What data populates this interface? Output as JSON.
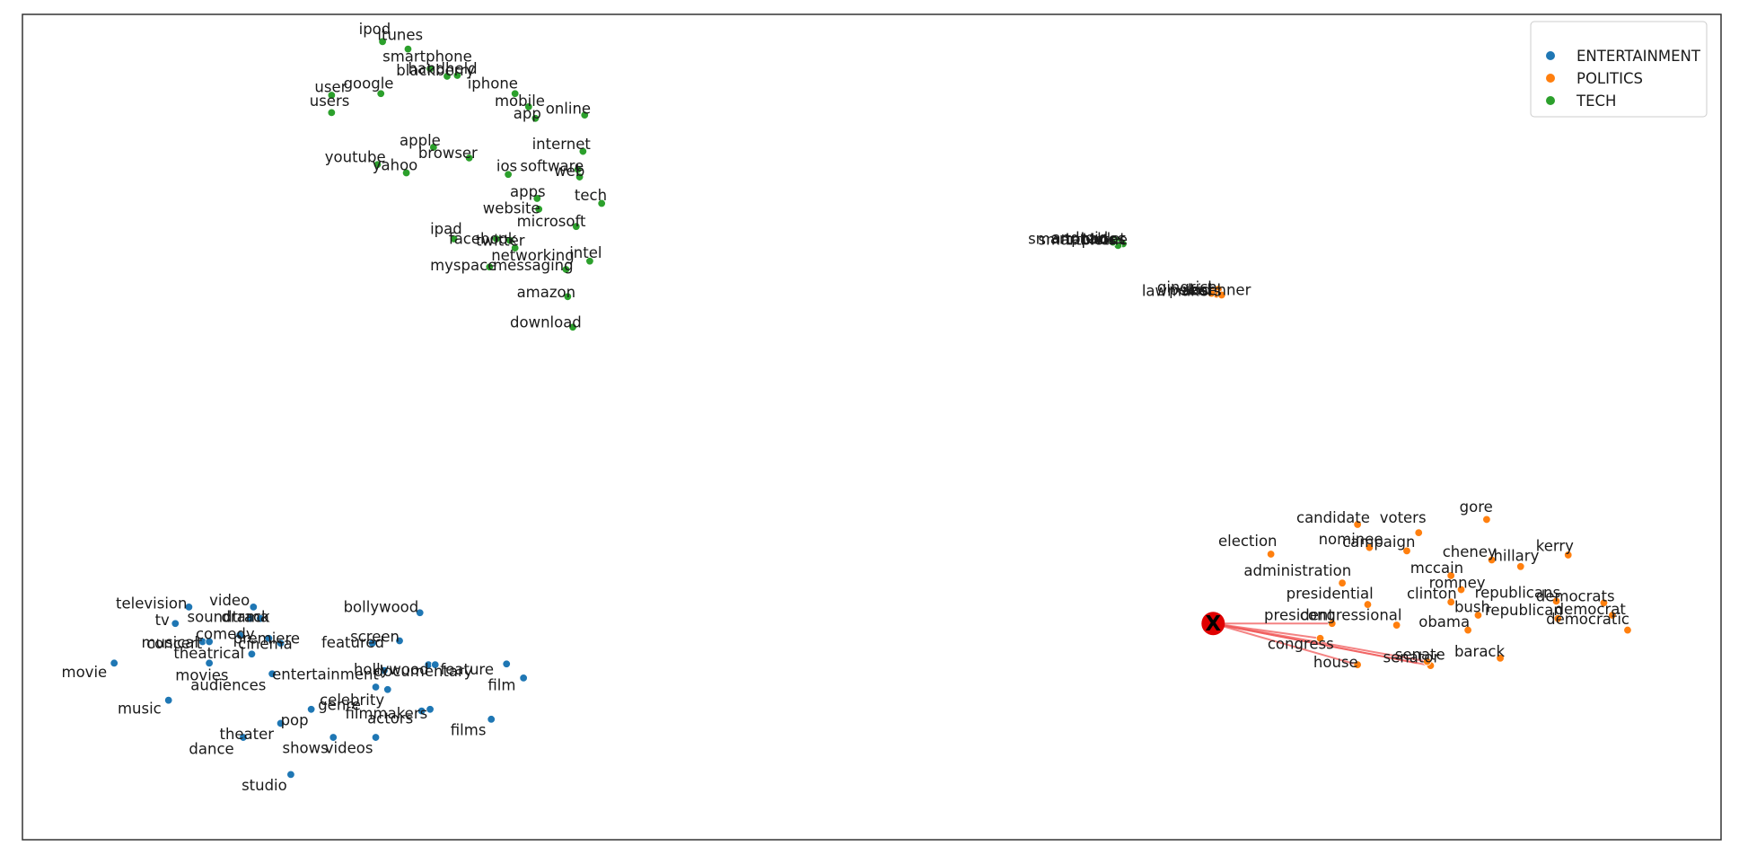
{
  "chart_data": {
    "type": "scatter",
    "title": "",
    "xlabel": "",
    "ylabel": "",
    "axes_visible": false,
    "grid": false,
    "legend_position": "top-right",
    "xlim": [
      0,
      1000
    ],
    "ylim": [
      0,
      1000
    ],
    "colors": {
      "ENTERTAINMENT": "#1f77b4",
      "POLITICS": "#ff7f0e",
      "TECH": "#2ca02c",
      "query_edge": "#f05a5a",
      "query_marker": "#e00000"
    },
    "legend": [
      "ENTERTAINMENT",
      "POLITICS",
      "TECH"
    ],
    "query_marker": {
      "label": "X",
      "x": 701,
      "y": 262
    },
    "query_edges": [
      {
        "x": 771,
        "y": 262
      },
      {
        "x": 764,
        "y": 244
      },
      {
        "x": 786,
        "y": 212
      },
      {
        "x": 829,
        "y": 211
      },
      {
        "x": 827,
        "y": 216
      },
      {
        "x": 821,
        "y": 214
      }
    ],
    "series": [
      {
        "name": "ENTERTAINMENT",
        "points": [
          {
            "label": "television",
            "x": 98,
            "y": 282
          },
          {
            "label": "video",
            "x": 136,
            "y": 282
          },
          {
            "label": "soundtrack",
            "x": 134,
            "y": 268
          },
          {
            "label": "drama",
            "x": 140,
            "y": 268
          },
          {
            "label": "tv",
            "x": 90,
            "y": 262
          },
          {
            "label": "comedy",
            "x": 128,
            "y": 248
          },
          {
            "label": "premiere",
            "x": 145,
            "y": 244
          },
          {
            "label": "cinema",
            "x": 152,
            "y": 238
          },
          {
            "label": "musical",
            "x": 106,
            "y": 240
          },
          {
            "label": "concert",
            "x": 110,
            "y": 240
          },
          {
            "label": "theatrical",
            "x": 135,
            "y": 225
          },
          {
            "label": "movie",
            "x": 54,
            "y": 214
          },
          {
            "label": "movies",
            "x": 110,
            "y": 214
          },
          {
            "label": "audiences",
            "x": 147,
            "y": 201
          },
          {
            "label": "bollywood",
            "x": 234,
            "y": 275
          },
          {
            "label": "screen",
            "x": 222,
            "y": 241
          },
          {
            "label": "featured",
            "x": 206,
            "y": 238
          },
          {
            "label": "hollywood",
            "x": 239,
            "y": 212
          },
          {
            "label": "documentary",
            "x": 243,
            "y": 212
          },
          {
            "label": "feature",
            "x": 285,
            "y": 213
          },
          {
            "label": "entertainment",
            "x": 213,
            "y": 205
          },
          {
            "label": "film",
            "x": 295,
            "y": 196
          },
          {
            "label": "celebrity",
            "x": 208,
            "y": 185
          },
          {
            "label": "genre",
            "x": 215,
            "y": 182
          },
          {
            "label": "filmmakers",
            "x": 240,
            "y": 158
          },
          {
            "label": "actors",
            "x": 235,
            "y": 156
          },
          {
            "label": "films",
            "x": 276,
            "y": 146
          },
          {
            "label": "music",
            "x": 86,
            "y": 169
          },
          {
            "label": "pop",
            "x": 170,
            "y": 158
          },
          {
            "label": "theater",
            "x": 152,
            "y": 141
          },
          {
            "label": "dance",
            "x": 130,
            "y": 124
          },
          {
            "label": "shows",
            "x": 183,
            "y": 124
          },
          {
            "label": "videos",
            "x": 208,
            "y": 124
          },
          {
            "label": "studio",
            "x": 158,
            "y": 79
          }
        ]
      },
      {
        "name": "POLITICS",
        "points": [
          {
            "label": "candidate",
            "x": 786,
            "y": 382
          },
          {
            "label": "voters",
            "x": 822,
            "y": 372
          },
          {
            "label": "gore",
            "x": 862,
            "y": 388
          },
          {
            "label": "election",
            "x": 735,
            "y": 346
          },
          {
            "label": "nominee",
            "x": 793,
            "y": 354
          },
          {
            "label": "campaign",
            "x": 815,
            "y": 350
          },
          {
            "label": "cheney",
            "x": 865,
            "y": 339
          },
          {
            "label": "hillary",
            "x": 882,
            "y": 331
          },
          {
            "label": "kerry",
            "x": 910,
            "y": 345
          },
          {
            "label": "administration",
            "x": 777,
            "y": 311
          },
          {
            "label": "mccain",
            "x": 841,
            "y": 320
          },
          {
            "label": "romney",
            "x": 847,
            "y": 303
          },
          {
            "label": "clinton",
            "x": 841,
            "y": 288
          },
          {
            "label": "presidential",
            "x": 792,
            "y": 285
          },
          {
            "label": "republicans",
            "x": 903,
            "y": 289
          },
          {
            "label": "democrats",
            "x": 931,
            "y": 287
          },
          {
            "label": "president",
            "x": 771,
            "y": 262
          },
          {
            "label": "congressional",
            "x": 809,
            "y": 260
          },
          {
            "label": "bush",
            "x": 857,
            "y": 272
          },
          {
            "label": "republican",
            "x": 904,
            "y": 268
          },
          {
            "label": "democrat",
            "x": 936,
            "y": 272
          },
          {
            "label": "democratic",
            "x": 945,
            "y": 254
          },
          {
            "label": "obama",
            "x": 851,
            "y": 254
          },
          {
            "label": "congress",
            "x": 764,
            "y": 244
          },
          {
            "label": "barack",
            "x": 870,
            "y": 220
          },
          {
            "label": "house",
            "x": 786,
            "y": 212
          },
          {
            "label": "senate",
            "x": 829,
            "y": 211
          },
          {
            "label": "senator",
            "x": 827,
            "y": 216
          },
          {
            "label": "lawmakers",
            "x": 701,
            "y": 664
          },
          {
            "label": "gingrich",
            "x": 704,
            "y": 667
          },
          {
            "label": "pelosi",
            "x": 703,
            "y": 661
          },
          {
            "label": "reid",
            "x": 700,
            "y": 662
          },
          {
            "label": "boehner",
            "x": 706,
            "y": 660
          }
        ]
      },
      {
        "name": "TECH",
        "points": [
          {
            "label": "ipod",
            "x": 212,
            "y": 967
          },
          {
            "label": "itunes",
            "x": 227,
            "y": 958
          },
          {
            "label": "smartphone",
            "x": 240,
            "y": 934
          },
          {
            "label": "blackberry",
            "x": 250,
            "y": 925
          },
          {
            "label": "handheld",
            "x": 256,
            "y": 926
          },
          {
            "label": "iphone",
            "x": 290,
            "y": 904
          },
          {
            "label": "google",
            "x": 211,
            "y": 904
          },
          {
            "label": "user",
            "x": 182,
            "y": 902
          },
          {
            "label": "users",
            "x": 182,
            "y": 881
          },
          {
            "label": "mobile",
            "x": 298,
            "y": 888
          },
          {
            "label": "app",
            "x": 302,
            "y": 874
          },
          {
            "label": "online",
            "x": 331,
            "y": 878
          },
          {
            "label": "internet",
            "x": 330,
            "y": 834
          },
          {
            "label": "apple",
            "x": 242,
            "y": 839
          },
          {
            "label": "browser",
            "x": 263,
            "y": 826
          },
          {
            "label": "youtube",
            "x": 209,
            "y": 818
          },
          {
            "label": "yahoo",
            "x": 226,
            "y": 808
          },
          {
            "label": "ios",
            "x": 286,
            "y": 806
          },
          {
            "label": "software",
            "x": 327,
            "y": 812
          },
          {
            "label": "web",
            "x": 328,
            "y": 803
          },
          {
            "label": "apps",
            "x": 303,
            "y": 777
          },
          {
            "label": "tech",
            "x": 341,
            "y": 771
          },
          {
            "label": "website",
            "x": 304,
            "y": 764
          },
          {
            "label": "microsoft",
            "x": 326,
            "y": 743
          },
          {
            "label": "ipad",
            "x": 254,
            "y": 728
          },
          {
            "label": "facebook",
            "x": 279,
            "y": 728
          },
          {
            "label": "twitter",
            "x": 287,
            "y": 726
          },
          {
            "label": "networking",
            "x": 290,
            "y": 717
          },
          {
            "label": "intel",
            "x": 334,
            "y": 701
          },
          {
            "label": "myspace",
            "x": 275,
            "y": 694
          },
          {
            "label": "messaging",
            "x": 320,
            "y": 691
          },
          {
            "label": "amazon",
            "x": 321,
            "y": 658
          },
          {
            "label": "download",
            "x": 324,
            "y": 621
          },
          {
            "label": "smartphones",
            "x": 643,
            "y": 728
          },
          {
            "label": "smartphone2",
            "x": 645,
            "y": 726
          },
          {
            "label": "android",
            "x": 648,
            "y": 722
          },
          {
            "label": "tablet",
            "x": 645,
            "y": 720
          },
          {
            "label": "tablets",
            "x": 642,
            "y": 724
          }
        ]
      }
    ],
    "text_labels": [
      {
        "text": "ipod",
        "x": 198,
        "y": 976
      },
      {
        "text": "itunes",
        "x": 209,
        "y": 969
      },
      {
        "text": "smartphone",
        "x": 212,
        "y": 943
      },
      {
        "text": "blackberry",
        "x": 220,
        "y": 926
      },
      {
        "text": "handheld",
        "x": 227,
        "y": 928
      },
      {
        "text": "iphone",
        "x": 262,
        "y": 910
      },
      {
        "text": "google",
        "x": 189,
        "y": 910
      },
      {
        "text": "user",
        "x": 172,
        "y": 906
      },
      {
        "text": "users",
        "x": 169,
        "y": 889
      },
      {
        "text": "mobile",
        "x": 278,
        "y": 889
      },
      {
        "text": "app",
        "x": 289,
        "y": 874
      },
      {
        "text": "online",
        "x": 308,
        "y": 880
      },
      {
        "text": "internet",
        "x": 300,
        "y": 837
      },
      {
        "text": "apple",
        "x": 222,
        "y": 841
      },
      {
        "text": "browser",
        "x": 233,
        "y": 826
      },
      {
        "text": "youtube",
        "x": 178,
        "y": 821
      },
      {
        "text": "yahoo",
        "x": 206,
        "y": 811
      },
      {
        "text": "ios",
        "x": 279,
        "y": 810
      },
      {
        "text": "software",
        "x": 293,
        "y": 810
      },
      {
        "text": "web",
        "x": 313,
        "y": 804
      },
      {
        "text": "apps",
        "x": 287,
        "y": 779
      },
      {
        "text": "tech",
        "x": 325,
        "y": 775
      },
      {
        "text": "website",
        "x": 271,
        "y": 759
      },
      {
        "text": "microsoft",
        "x": 291,
        "y": 743
      },
      {
        "text": "ipad",
        "x": 240,
        "y": 734
      },
      {
        "text": "facebook",
        "x": 251,
        "y": 722
      },
      {
        "text": "twitter",
        "x": 267,
        "y": 720
      },
      {
        "text": "networking",
        "x": 276,
        "y": 702
      },
      {
        "text": "intel",
        "x": 322,
        "y": 705
      },
      {
        "text": "myspace",
        "x": 240,
        "y": 690
      },
      {
        "text": "messaging",
        "x": 277,
        "y": 690
      },
      {
        "text": "amazon",
        "x": 291,
        "y": 657
      },
      {
        "text": "download",
        "x": 287,
        "y": 621
      },
      {
        "text": "smartphones",
        "x": 592,
        "y": 722
      },
      {
        "text": "smartphone",
        "x": 598,
        "y": 721
      },
      {
        "text": "android",
        "x": 606,
        "y": 723
      },
      {
        "text": "tablets",
        "x": 614,
        "y": 721
      },
      {
        "text": "tablet",
        "x": 624,
        "y": 722
      },
      {
        "text": "lawmakers",
        "x": 659,
        "y": 659
      },
      {
        "text": "gingrich",
        "x": 668,
        "y": 663
      },
      {
        "text": "pelosi",
        "x": 675,
        "y": 660
      },
      {
        "text": "reid",
        "x": 683,
        "y": 660
      },
      {
        "text": "boehner",
        "x": 687,
        "y": 660
      },
      {
        "text": "candidate",
        "x": 750,
        "y": 384
      },
      {
        "text": "voters",
        "x": 799,
        "y": 384
      },
      {
        "text": "gore",
        "x": 846,
        "y": 397
      },
      {
        "text": "election",
        "x": 704,
        "y": 356
      },
      {
        "text": "nominee",
        "x": 763,
        "y": 358
      },
      {
        "text": "campaign",
        "x": 777,
        "y": 355
      },
      {
        "text": "cheney",
        "x": 836,
        "y": 343
      },
      {
        "text": "hillary",
        "x": 866,
        "y": 338
      },
      {
        "text": "kerry",
        "x": 891,
        "y": 350
      },
      {
        "text": "administration",
        "x": 719,
        "y": 320
      },
      {
        "text": "mccain",
        "x": 817,
        "y": 323
      },
      {
        "text": "romney",
        "x": 828,
        "y": 305
      },
      {
        "text": "clinton",
        "x": 815,
        "y": 292
      },
      {
        "text": "presidential",
        "x": 744,
        "y": 292
      },
      {
        "text": "republicans",
        "x": 855,
        "y": 293
      },
      {
        "text": "democrats",
        "x": 891,
        "y": 289
      },
      {
        "text": "president",
        "x": 731,
        "y": 266
      },
      {
        "text": "congressional",
        "x": 752,
        "y": 266
      },
      {
        "text": "bush",
        "x": 843,
        "y": 276
      },
      {
        "text": "republican",
        "x": 861,
        "y": 272
      },
      {
        "text": "democrat",
        "x": 902,
        "y": 273
      },
      {
        "text": "democratic",
        "x": 897,
        "y": 261
      },
      {
        "text": "obama",
        "x": 822,
        "y": 258
      },
      {
        "text": "congress",
        "x": 733,
        "y": 231
      },
      {
        "text": "barack",
        "x": 843,
        "y": 222
      },
      {
        "text": "house",
        "x": 760,
        "y": 209
      },
      {
        "text": "senate",
        "x": 808,
        "y": 218
      },
      {
        "text": "senator",
        "x": 801,
        "y": 215
      },
      {
        "text": "television",
        "x": 55,
        "y": 280
      },
      {
        "text": "video",
        "x": 110,
        "y": 284
      },
      {
        "text": "soundtrack",
        "x": 97,
        "y": 264
      },
      {
        "text": "drama",
        "x": 117,
        "y": 264
      },
      {
        "text": "tv",
        "x": 78,
        "y": 260
      },
      {
        "text": "comedy",
        "x": 102,
        "y": 243
      },
      {
        "text": "premiere",
        "x": 124,
        "y": 238
      },
      {
        "text": "cinema",
        "x": 127,
        "y": 231
      },
      {
        "text": "musical",
        "x": 70,
        "y": 233
      },
      {
        "text": "concert",
        "x": 73,
        "y": 232
      },
      {
        "text": "theatrical",
        "x": 89,
        "y": 220
      },
      {
        "text": "movie",
        "x": 23,
        "y": 197
      },
      {
        "text": "movies",
        "x": 90,
        "y": 193
      },
      {
        "text": "audiences",
        "x": 99,
        "y": 181
      },
      {
        "text": "bollywood",
        "x": 189,
        "y": 276
      },
      {
        "text": "screen",
        "x": 193,
        "y": 240
      },
      {
        "text": "featured",
        "x": 176,
        "y": 233
      },
      {
        "text": "hollywood",
        "x": 195,
        "y": 200
      },
      {
        "text": "documentary",
        "x": 207,
        "y": 198
      },
      {
        "text": "feature",
        "x": 246,
        "y": 200
      },
      {
        "text": "entertainment",
        "x": 147,
        "y": 194
      },
      {
        "text": "film",
        "x": 274,
        "y": 181
      },
      {
        "text": "celebrity",
        "x": 175,
        "y": 163
      },
      {
        "text": "genre",
        "x": 174,
        "y": 157
      },
      {
        "text": "filmmakers",
        "x": 190,
        "y": 147
      },
      {
        "text": "actors",
        "x": 203,
        "y": 141
      },
      {
        "text": "films",
        "x": 252,
        "y": 127
      },
      {
        "text": "music",
        "x": 56,
        "y": 153
      },
      {
        "text": "pop",
        "x": 152,
        "y": 139
      },
      {
        "text": "theater",
        "x": 116,
        "y": 122
      },
      {
        "text": "dance",
        "x": 98,
        "y": 104
      },
      {
        "text": "shows",
        "x": 153,
        "y": 105
      },
      {
        "text": "videos",
        "x": 178,
        "y": 105
      },
      {
        "text": "studio",
        "x": 129,
        "y": 60
      }
    ]
  }
}
